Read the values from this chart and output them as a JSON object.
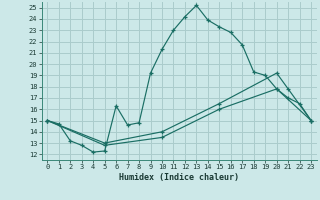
{
  "xlabel": "Humidex (Indice chaleur)",
  "bg_color": "#cce8e8",
  "grid_color": "#aacccc",
  "line_color": "#1a6e64",
  "xlim": [
    -0.5,
    23.5
  ],
  "ylim": [
    11.5,
    25.5
  ],
  "xticks": [
    0,
    1,
    2,
    3,
    4,
    5,
    6,
    7,
    8,
    9,
    10,
    11,
    12,
    13,
    14,
    15,
    16,
    17,
    18,
    19,
    20,
    21,
    22,
    23
  ],
  "yticks": [
    12,
    13,
    14,
    15,
    16,
    17,
    18,
    19,
    20,
    21,
    22,
    23,
    24,
    25
  ],
  "line1_x": [
    0,
    1,
    2,
    3,
    4,
    5,
    6,
    7,
    8,
    9,
    10,
    11,
    12,
    13,
    14,
    15,
    16,
    17,
    18,
    19,
    20,
    21,
    22,
    23
  ],
  "line1_y": [
    15,
    14.7,
    13.2,
    12.8,
    12.2,
    12.3,
    16.3,
    14.6,
    14.8,
    19.2,
    21.3,
    23.0,
    24.2,
    25.2,
    23.9,
    23.3,
    22.8,
    21.7,
    19.3,
    19.0,
    17.8,
    17.0,
    16.5,
    15.0
  ],
  "line2_x": [
    0,
    5,
    10,
    15,
    20,
    21,
    23
  ],
  "line2_y": [
    15,
    13.0,
    14.0,
    16.5,
    19.2,
    17.8,
    15.0
  ],
  "line3_x": [
    0,
    5,
    10,
    15,
    20,
    23
  ],
  "line3_y": [
    15,
    12.8,
    13.5,
    16.0,
    17.8,
    15.0
  ]
}
